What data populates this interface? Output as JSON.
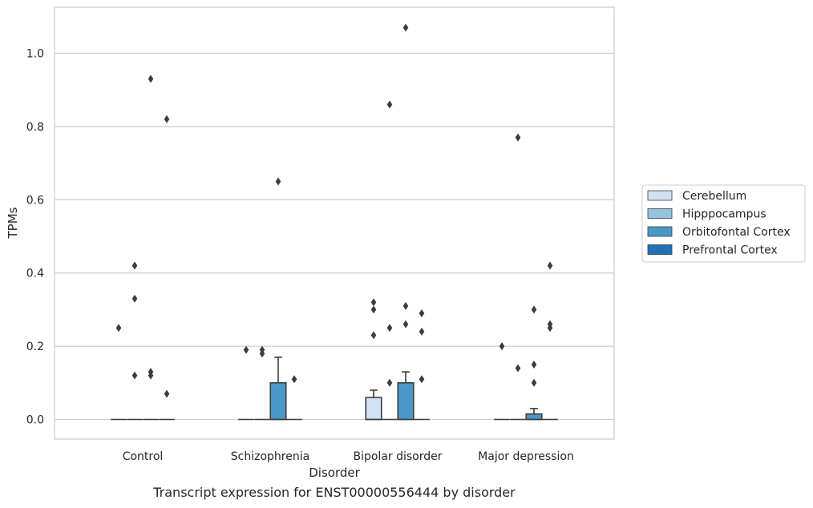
{
  "caption": "Transcript expression for ENST00000556444 by disorder",
  "chart_data": {
    "type": "box",
    "xlabel": "Disorder",
    "ylabel": "TPMs",
    "ylim": [
      -0.05,
      1.13
    ],
    "yticks": [
      0.0,
      0.2,
      0.4,
      0.6,
      0.8,
      1.0
    ],
    "ytick_labels": [
      "0.0",
      "0.2",
      "0.4",
      "0.6",
      "0.8",
      "1.0"
    ],
    "grid": "horizontal",
    "legend_position": "right",
    "categories": [
      "Control",
      "Schizophrenia",
      "Bipolar disorder",
      "Major depression"
    ],
    "series": [
      {
        "name": "Cerebellum",
        "color": "#d0e1f2",
        "boxes": [
          {
            "q1": 0,
            "median": 0,
            "q3": 0,
            "whisker_low": 0,
            "whisker_high": 0,
            "outliers": [
              0.25
            ]
          },
          {
            "q1": 0,
            "median": 0,
            "q3": 0,
            "whisker_low": 0,
            "whisker_high": 0,
            "outliers": [
              0.19
            ]
          },
          {
            "q1": 0,
            "median": 0,
            "q3": 0.06,
            "whisker_low": 0,
            "whisker_high": 0.08,
            "outliers": [
              0.32,
              0.3,
              0.23
            ]
          },
          {
            "q1": 0,
            "median": 0,
            "q3": 0,
            "whisker_low": 0,
            "whisker_high": 0,
            "outliers": [
              0.2
            ]
          }
        ]
      },
      {
        "name": "Hipppocampus",
        "color": "#94c4df",
        "boxes": [
          {
            "q1": 0,
            "median": 0,
            "q3": 0,
            "whisker_low": 0,
            "whisker_high": 0,
            "outliers": [
              0.42,
              0.33,
              0.12
            ]
          },
          {
            "q1": 0,
            "median": 0,
            "q3": 0,
            "whisker_low": 0,
            "whisker_high": 0,
            "outliers": [
              0.19,
              0.18
            ]
          },
          {
            "q1": 0,
            "median": 0,
            "q3": 0,
            "whisker_low": 0,
            "whisker_high": 0,
            "outliers": [
              0.86,
              0.25,
              0.1
            ]
          },
          {
            "q1": 0,
            "median": 0,
            "q3": 0,
            "whisker_low": 0,
            "whisker_high": 0,
            "outliers": [
              0.77,
              0.14
            ]
          }
        ]
      },
      {
        "name": "Orbitofontal Cortex",
        "color": "#4a98c9",
        "boxes": [
          {
            "q1": 0,
            "median": 0,
            "q3": 0,
            "whisker_low": 0,
            "whisker_high": 0,
            "outliers": [
              0.93,
              0.13,
              0.12
            ]
          },
          {
            "q1": 0,
            "median": 0,
            "q3": 0.1,
            "whisker_low": 0,
            "whisker_high": 0.17,
            "outliers": [
              0.65
            ]
          },
          {
            "q1": 0,
            "median": 0,
            "q3": 0.1,
            "whisker_low": 0,
            "whisker_high": 0.13,
            "outliers": [
              1.07,
              0.31,
              0.26
            ]
          },
          {
            "q1": 0,
            "median": 0,
            "q3": 0.015,
            "whisker_low": 0,
            "whisker_high": 0.03,
            "outliers": [
              0.3,
              0.15,
              0.1
            ]
          }
        ]
      },
      {
        "name": "Prefrontal Cortex",
        "color": "#2171b5",
        "boxes": [
          {
            "q1": 0,
            "median": 0,
            "q3": 0,
            "whisker_low": 0,
            "whisker_high": 0,
            "outliers": [
              0.82,
              0.07
            ]
          },
          {
            "q1": 0,
            "median": 0,
            "q3": 0,
            "whisker_low": 0,
            "whisker_high": 0,
            "outliers": [
              0.11
            ]
          },
          {
            "q1": 0,
            "median": 0,
            "q3": 0,
            "whisker_low": 0,
            "whisker_high": 0,
            "outliers": [
              0.29,
              0.24,
              0.11
            ]
          },
          {
            "q1": 0,
            "median": 0,
            "q3": 0,
            "whisker_low": 0,
            "whisker_high": 0,
            "outliers": [
              0.42,
              0.26,
              0.25
            ]
          }
        ]
      }
    ]
  }
}
